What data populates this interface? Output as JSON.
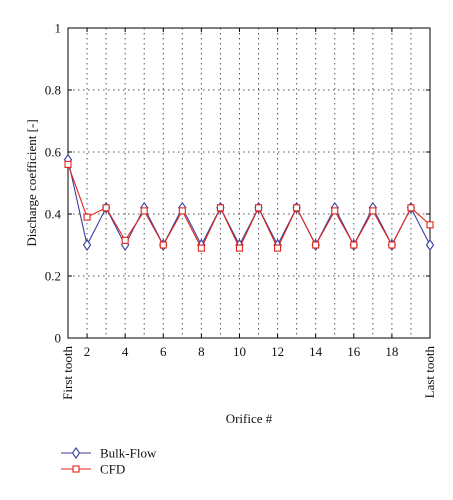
{
  "chart_data": {
    "type": "line",
    "xlabel": "Orifice #",
    "ylabel": "Discharge coefficient [-]",
    "xlim": [
      1,
      20
    ],
    "ylim": [
      0,
      1
    ],
    "grid": true,
    "legend_position": "bottom-left",
    "x_ticks": [
      {
        "x": 1,
        "label": "First tooth",
        "rotated": true
      },
      {
        "x": 2,
        "label": "2"
      },
      {
        "x": 4,
        "label": "4"
      },
      {
        "x": 6,
        "label": "6"
      },
      {
        "x": 8,
        "label": "8"
      },
      {
        "x": 10,
        "label": "10"
      },
      {
        "x": 12,
        "label": "12"
      },
      {
        "x": 14,
        "label": "14"
      },
      {
        "x": 16,
        "label": "16"
      },
      {
        "x": 18,
        "label": "18"
      },
      {
        "x": 20,
        "label": "Last tooth",
        "rotated": true
      }
    ],
    "y_ticks": [
      {
        "y": 0,
        "label": "0"
      },
      {
        "y": 0.2,
        "label": "0.2"
      },
      {
        "y": 0.4,
        "label": "0.4"
      },
      {
        "y": 0.6,
        "label": "0.6"
      },
      {
        "y": 0.8,
        "label": "0.8"
      },
      {
        "y": 1,
        "label": "1"
      }
    ],
    "x": [
      1,
      2,
      3,
      4,
      5,
      6,
      7,
      8,
      9,
      10,
      11,
      12,
      13,
      14,
      15,
      16,
      17,
      18,
      19,
      20
    ],
    "series": [
      {
        "name": "Bulk-Flow",
        "color": "#3a3f9e",
        "marker": "diamond",
        "values": [
          0.575,
          0.3,
          0.42,
          0.3,
          0.42,
          0.3,
          0.42,
          0.3,
          0.42,
          0.3,
          0.42,
          0.3,
          0.42,
          0.3,
          0.42,
          0.3,
          0.42,
          0.3,
          0.42,
          0.3
        ]
      },
      {
        "name": "CFD",
        "color": "#e0231b",
        "marker": "square",
        "values": [
          0.56,
          0.39,
          0.42,
          0.315,
          0.41,
          0.3,
          0.41,
          0.29,
          0.42,
          0.29,
          0.42,
          0.29,
          0.42,
          0.3,
          0.41,
          0.3,
          0.41,
          0.3,
          0.42,
          0.365
        ]
      }
    ]
  }
}
